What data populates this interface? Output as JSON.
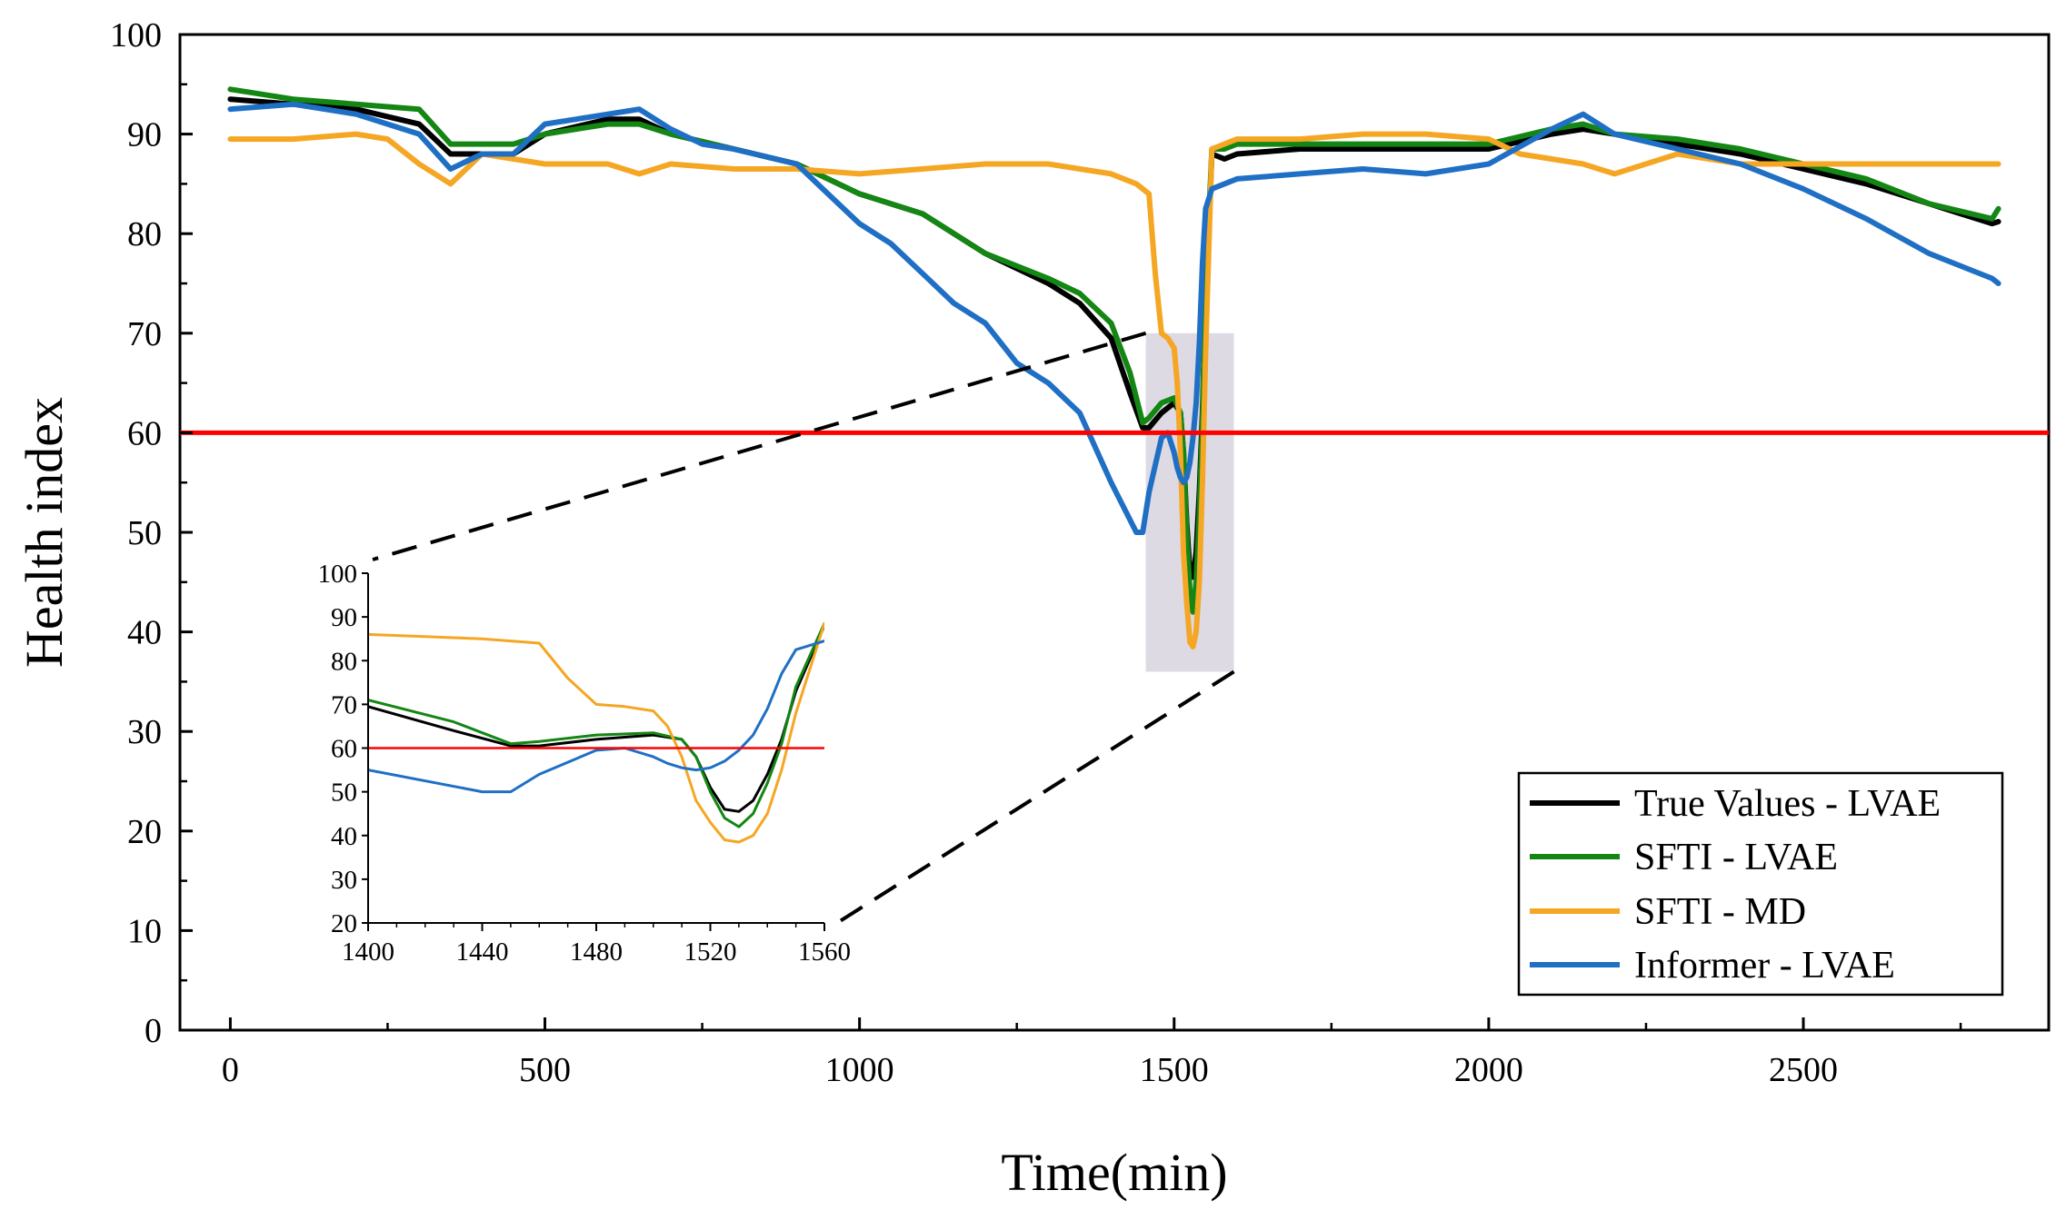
{
  "chart_data": {
    "type": "line",
    "xlabel": "Time(min)",
    "ylabel": "Health index",
    "xlim": [
      -80,
      2890
    ],
    "ylim": [
      0,
      100
    ],
    "xticks": [
      0,
      500,
      1000,
      1500,
      2000,
      2500
    ],
    "yticks": [
      0,
      10,
      20,
      30,
      40,
      50,
      60,
      70,
      80,
      90,
      100
    ],
    "threshold": {
      "value": 60,
      "color": "#ff0000"
    },
    "highlight_region": {
      "x": [
        1455,
        1595
      ],
      "y": [
        36,
        70
      ],
      "color": "#d8d4de"
    },
    "legend_position": "bottom-right",
    "series": [
      {
        "name": "True Values - LVAE",
        "color": "#000000",
        "x": [
          0,
          100,
          200,
          300,
          350,
          400,
          450,
          500,
          600,
          650,
          700,
          800,
          900,
          1000,
          1100,
          1200,
          1300,
          1350,
          1400,
          1430,
          1450,
          1460,
          1480,
          1500,
          1510,
          1515,
          1520,
          1525,
          1530,
          1535,
          1540,
          1545,
          1550,
          1560,
          1580,
          1600,
          1700,
          1800,
          2000,
          2100,
          2150,
          2200,
          2300,
          2400,
          2500,
          2600,
          2700,
          2800,
          2810
        ],
        "values": [
          93.5,
          93,
          92.5,
          91,
          88,
          88,
          88,
          90,
          91.5,
          91.5,
          90,
          88.5,
          87,
          84,
          82,
          78,
          75,
          73,
          69.5,
          64,
          60.5,
          60.5,
          62,
          63,
          62,
          58,
          51,
          46,
          45.5,
          48,
          54,
          62,
          73,
          88,
          87.5,
          88,
          88.5,
          88.5,
          88.5,
          90,
          90.5,
          90,
          89,
          88,
          86.5,
          85,
          83,
          81,
          81.2
        ]
      },
      {
        "name": "SFTI - LVAE",
        "color": "#138613",
        "x": [
          0,
          100,
          200,
          300,
          350,
          400,
          450,
          500,
          600,
          650,
          700,
          800,
          900,
          1000,
          1100,
          1200,
          1300,
          1350,
          1400,
          1430,
          1450,
          1460,
          1480,
          1500,
          1510,
          1515,
          1520,
          1525,
          1530,
          1535,
          1540,
          1545,
          1550,
          1560,
          1580,
          1600,
          1700,
          1800,
          2000,
          2100,
          2150,
          2200,
          2300,
          2400,
          2500,
          2600,
          2700,
          2800,
          2810
        ],
        "values": [
          94.5,
          93.5,
          93,
          92.5,
          89,
          89,
          89,
          90,
          91,
          91,
          90,
          88.5,
          87,
          84,
          82,
          78,
          75.5,
          74,
          71,
          66,
          61,
          61.5,
          63,
          63.5,
          62,
          58,
          50,
          44,
          42,
          45,
          52,
          61,
          74,
          88.5,
          88.5,
          89,
          89,
          89,
          89,
          90.5,
          91,
          90,
          89.5,
          88.5,
          87,
          85.5,
          83,
          81.5,
          82.5
        ]
      },
      {
        "name": "SFTI - MD",
        "color": "#f5a623",
        "x": [
          0,
          100,
          200,
          250,
          300,
          350,
          400,
          500,
          600,
          650,
          700,
          800,
          900,
          1000,
          1100,
          1200,
          1300,
          1400,
          1440,
          1460,
          1470,
          1480,
          1490,
          1500,
          1505,
          1510,
          1515,
          1520,
          1525,
          1530,
          1535,
          1540,
          1545,
          1550,
          1560,
          1600,
          1700,
          1800,
          1900,
          2000,
          2050,
          2100,
          2150,
          2200,
          2300,
          2400,
          2500,
          2600,
          2700,
          2810
        ],
        "values": [
          89.5,
          89.5,
          90,
          89.5,
          87,
          85,
          88,
          87,
          87,
          86,
          87,
          86.5,
          86.5,
          86,
          86.5,
          87,
          87,
          86,
          85,
          84,
          76,
          70,
          69.5,
          68.5,
          65,
          58,
          48,
          43,
          39,
          38.5,
          40,
          45,
          55,
          68,
          88.5,
          89.5,
          89.5,
          90,
          90,
          89.5,
          88,
          87.5,
          87,
          86,
          88,
          87,
          87,
          87,
          87,
          87
        ]
      },
      {
        "name": "Informer - LVAE",
        "color": "#1f6fc5",
        "x": [
          0,
          100,
          200,
          300,
          350,
          400,
          450,
          500,
          600,
          650,
          700,
          750,
          800,
          900,
          950,
          1000,
          1050,
          1100,
          1150,
          1200,
          1250,
          1300,
          1350,
          1400,
          1440,
          1450,
          1460,
          1480,
          1490,
          1500,
          1505,
          1510,
          1515,
          1520,
          1525,
          1530,
          1535,
          1540,
          1545,
          1550,
          1560,
          1600,
          1700,
          1800,
          1900,
          2000,
          2100,
          2150,
          2200,
          2300,
          2400,
          2500,
          2600,
          2700,
          2800,
          2810
        ],
        "values": [
          92.5,
          93,
          92,
          90,
          86.5,
          88,
          88,
          91,
          92,
          92.5,
          90.5,
          89,
          88.5,
          87,
          84,
          81,
          79,
          76,
          73,
          71,
          67,
          65,
          62,
          55,
          50,
          50,
          54,
          59.5,
          60,
          58,
          56.5,
          55.5,
          55,
          55.5,
          57,
          59.5,
          63,
          69,
          77,
          82.5,
          84.5,
          85.5,
          86,
          86.5,
          86,
          87,
          90.5,
          92,
          90,
          88.5,
          87,
          84.5,
          81.5,
          78,
          75.5,
          75
        ]
      }
    ],
    "inset": {
      "xlim": [
        1400,
        1560
      ],
      "ylim": [
        20,
        100
      ],
      "xticks": [
        1400,
        1440,
        1480,
        1520,
        1560
      ],
      "yticks": [
        20,
        30,
        40,
        50,
        60,
        70,
        80,
        90,
        100
      ]
    }
  }
}
